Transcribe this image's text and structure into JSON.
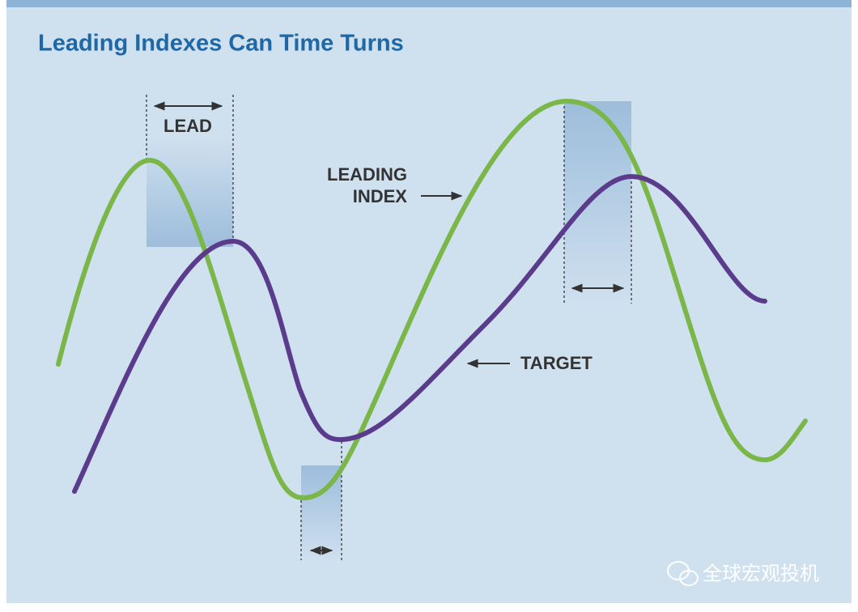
{
  "title": "Leading Indexes Can Time Turns",
  "labels": {
    "lead": "LEAD",
    "leading_index": [
      "LEADING",
      "INDEX"
    ],
    "target": "TARGET"
  },
  "watermark": "全球宏观投机"
}
